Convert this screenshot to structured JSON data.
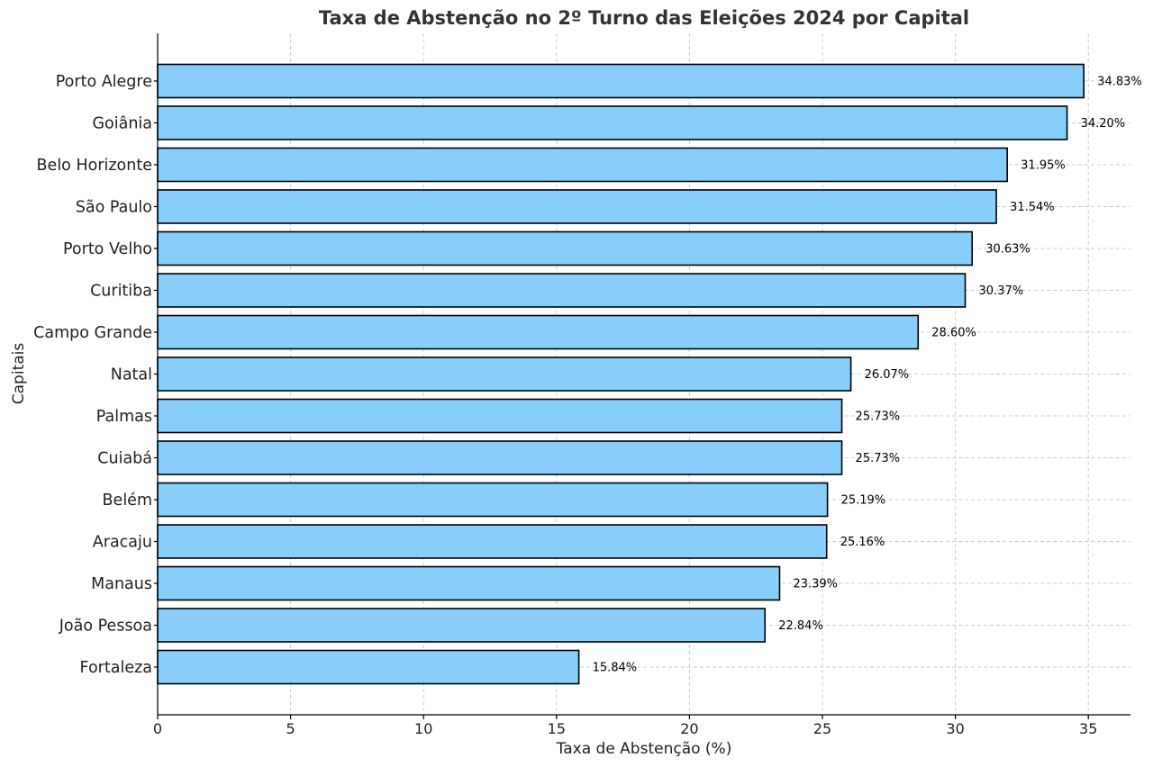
{
  "chart_data": {
    "type": "bar",
    "orientation": "horizontal",
    "title": "Taxa de Abstenção no 2º Turno das Eleições 2024 por Capital",
    "xlabel": "Taxa de Abstenção (%)",
    "ylabel": "Capitais",
    "xlim": [
      0,
      36.5
    ],
    "xticks": [
      0,
      5,
      10,
      15,
      20,
      25,
      30,
      35
    ],
    "grid": true,
    "bar_color": "#87CEFA",
    "categories": [
      "Porto Alegre",
      "Goiânia",
      "Belo Horizonte",
      "São Paulo",
      "Porto Velho",
      "Curitiba",
      "Campo Grande",
      "Natal",
      "Palmas",
      "Cuiabá",
      "Belém",
      "Aracaju",
      "Manaus",
      "João Pessoa",
      "Fortaleza"
    ],
    "values": [
      34.83,
      34.2,
      31.95,
      31.54,
      30.63,
      30.37,
      28.6,
      26.07,
      25.73,
      25.73,
      25.19,
      25.16,
      23.39,
      22.84,
      15.84
    ],
    "data_labels": [
      "34.83%",
      "34.20%",
      "31.95%",
      "31.54%",
      "30.63%",
      "30.37%",
      "28.60%",
      "26.07%",
      "25.73%",
      "25.73%",
      "25.19%",
      "25.16%",
      "23.39%",
      "22.84%",
      "15.84%"
    ]
  }
}
